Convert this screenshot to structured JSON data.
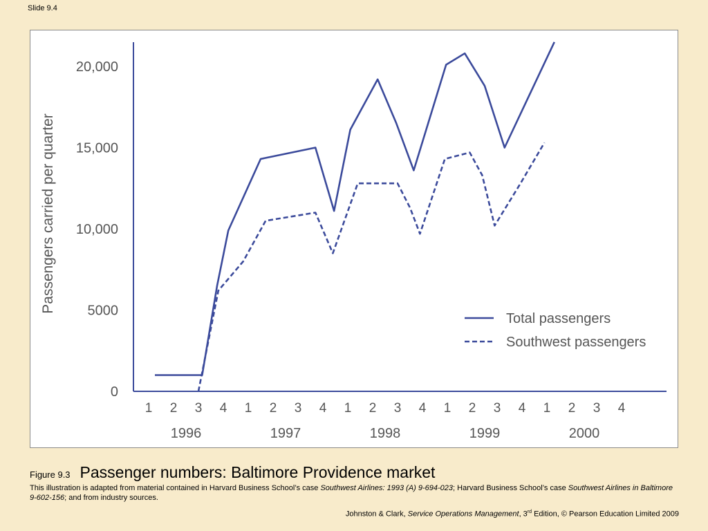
{
  "slide_label": "Slide 9.4",
  "chart_data": {
    "type": "line",
    "ylabel": "Passengers carried per quarter",
    "xlabel": "",
    "ylim": [
      0,
      21500
    ],
    "yticks": [
      0,
      5000,
      10000,
      15000,
      20000
    ],
    "ytick_labels": [
      "0",
      "5000",
      "10,000",
      "15,000",
      "20,000"
    ],
    "quarter_labels": [
      "1",
      "2",
      "3",
      "4",
      "1",
      "2",
      "3",
      "4",
      "1",
      "2",
      "3",
      "4",
      "1",
      "2",
      "3",
      "4",
      "1",
      "2",
      "3",
      "4"
    ],
    "years": [
      "1996",
      "1997",
      "1998",
      "1999",
      "2000"
    ],
    "grid": false,
    "legend_position": "lower-right",
    "series": [
      {
        "name": "Total passengers",
        "style": "solid",
        "color": "#3b4a9b",
        "points": [
          [
            0.25,
            1000
          ],
          [
            1.0,
            1000
          ],
          [
            2.15,
            1000
          ],
          [
            2.75,
            6500
          ],
          [
            3.2,
            9900
          ],
          [
            4.5,
            14300
          ],
          [
            6.7,
            15000
          ],
          [
            7.45,
            11100
          ],
          [
            8.1,
            16100
          ],
          [
            9.2,
            19200
          ],
          [
            9.95,
            16500
          ],
          [
            10.65,
            13600
          ],
          [
            11.95,
            20100
          ],
          [
            12.7,
            20800
          ],
          [
            13.5,
            18800
          ],
          [
            14.3,
            15000
          ],
          [
            16.3,
            21500
          ]
        ]
      },
      {
        "name": "Southwest passengers",
        "style": "dashed",
        "color": "#3b4a9b",
        "points": [
          [
            2.0,
            0
          ],
          [
            2.8,
            6200
          ],
          [
            3.8,
            8000
          ],
          [
            4.7,
            10500
          ],
          [
            6.7,
            11000
          ],
          [
            7.4,
            8500
          ],
          [
            8.4,
            12800
          ],
          [
            10.0,
            12800
          ],
          [
            10.5,
            11300
          ],
          [
            10.9,
            9700
          ],
          [
            11.9,
            14300
          ],
          [
            12.9,
            14700
          ],
          [
            13.4,
            13300
          ],
          [
            13.9,
            10200
          ],
          [
            14.9,
            12700
          ],
          [
            15.9,
            15300
          ]
        ]
      }
    ]
  },
  "caption": {
    "figure_number": "Figure 9.3",
    "title": "Passenger numbers: Baltimore Providence market",
    "source_a": "This illustration is adapted from material contained in Harvard Business School’s case ",
    "source_b": "Southwest Airlines: 1993 (A) 9-694-023",
    "source_c": "; Harvard Business School’s case ",
    "source_d": "Southwest Airlines in Baltimore 9-602-156",
    "source_e": "; and from industry sources."
  },
  "footer": {
    "authors": "Johnston & Clark, ",
    "book_title": "Service Operations Management",
    "edition_a": ", 3",
    "edition_sup": "rd",
    "edition_b": " Edition, © Pearson Education Limited 2009"
  }
}
